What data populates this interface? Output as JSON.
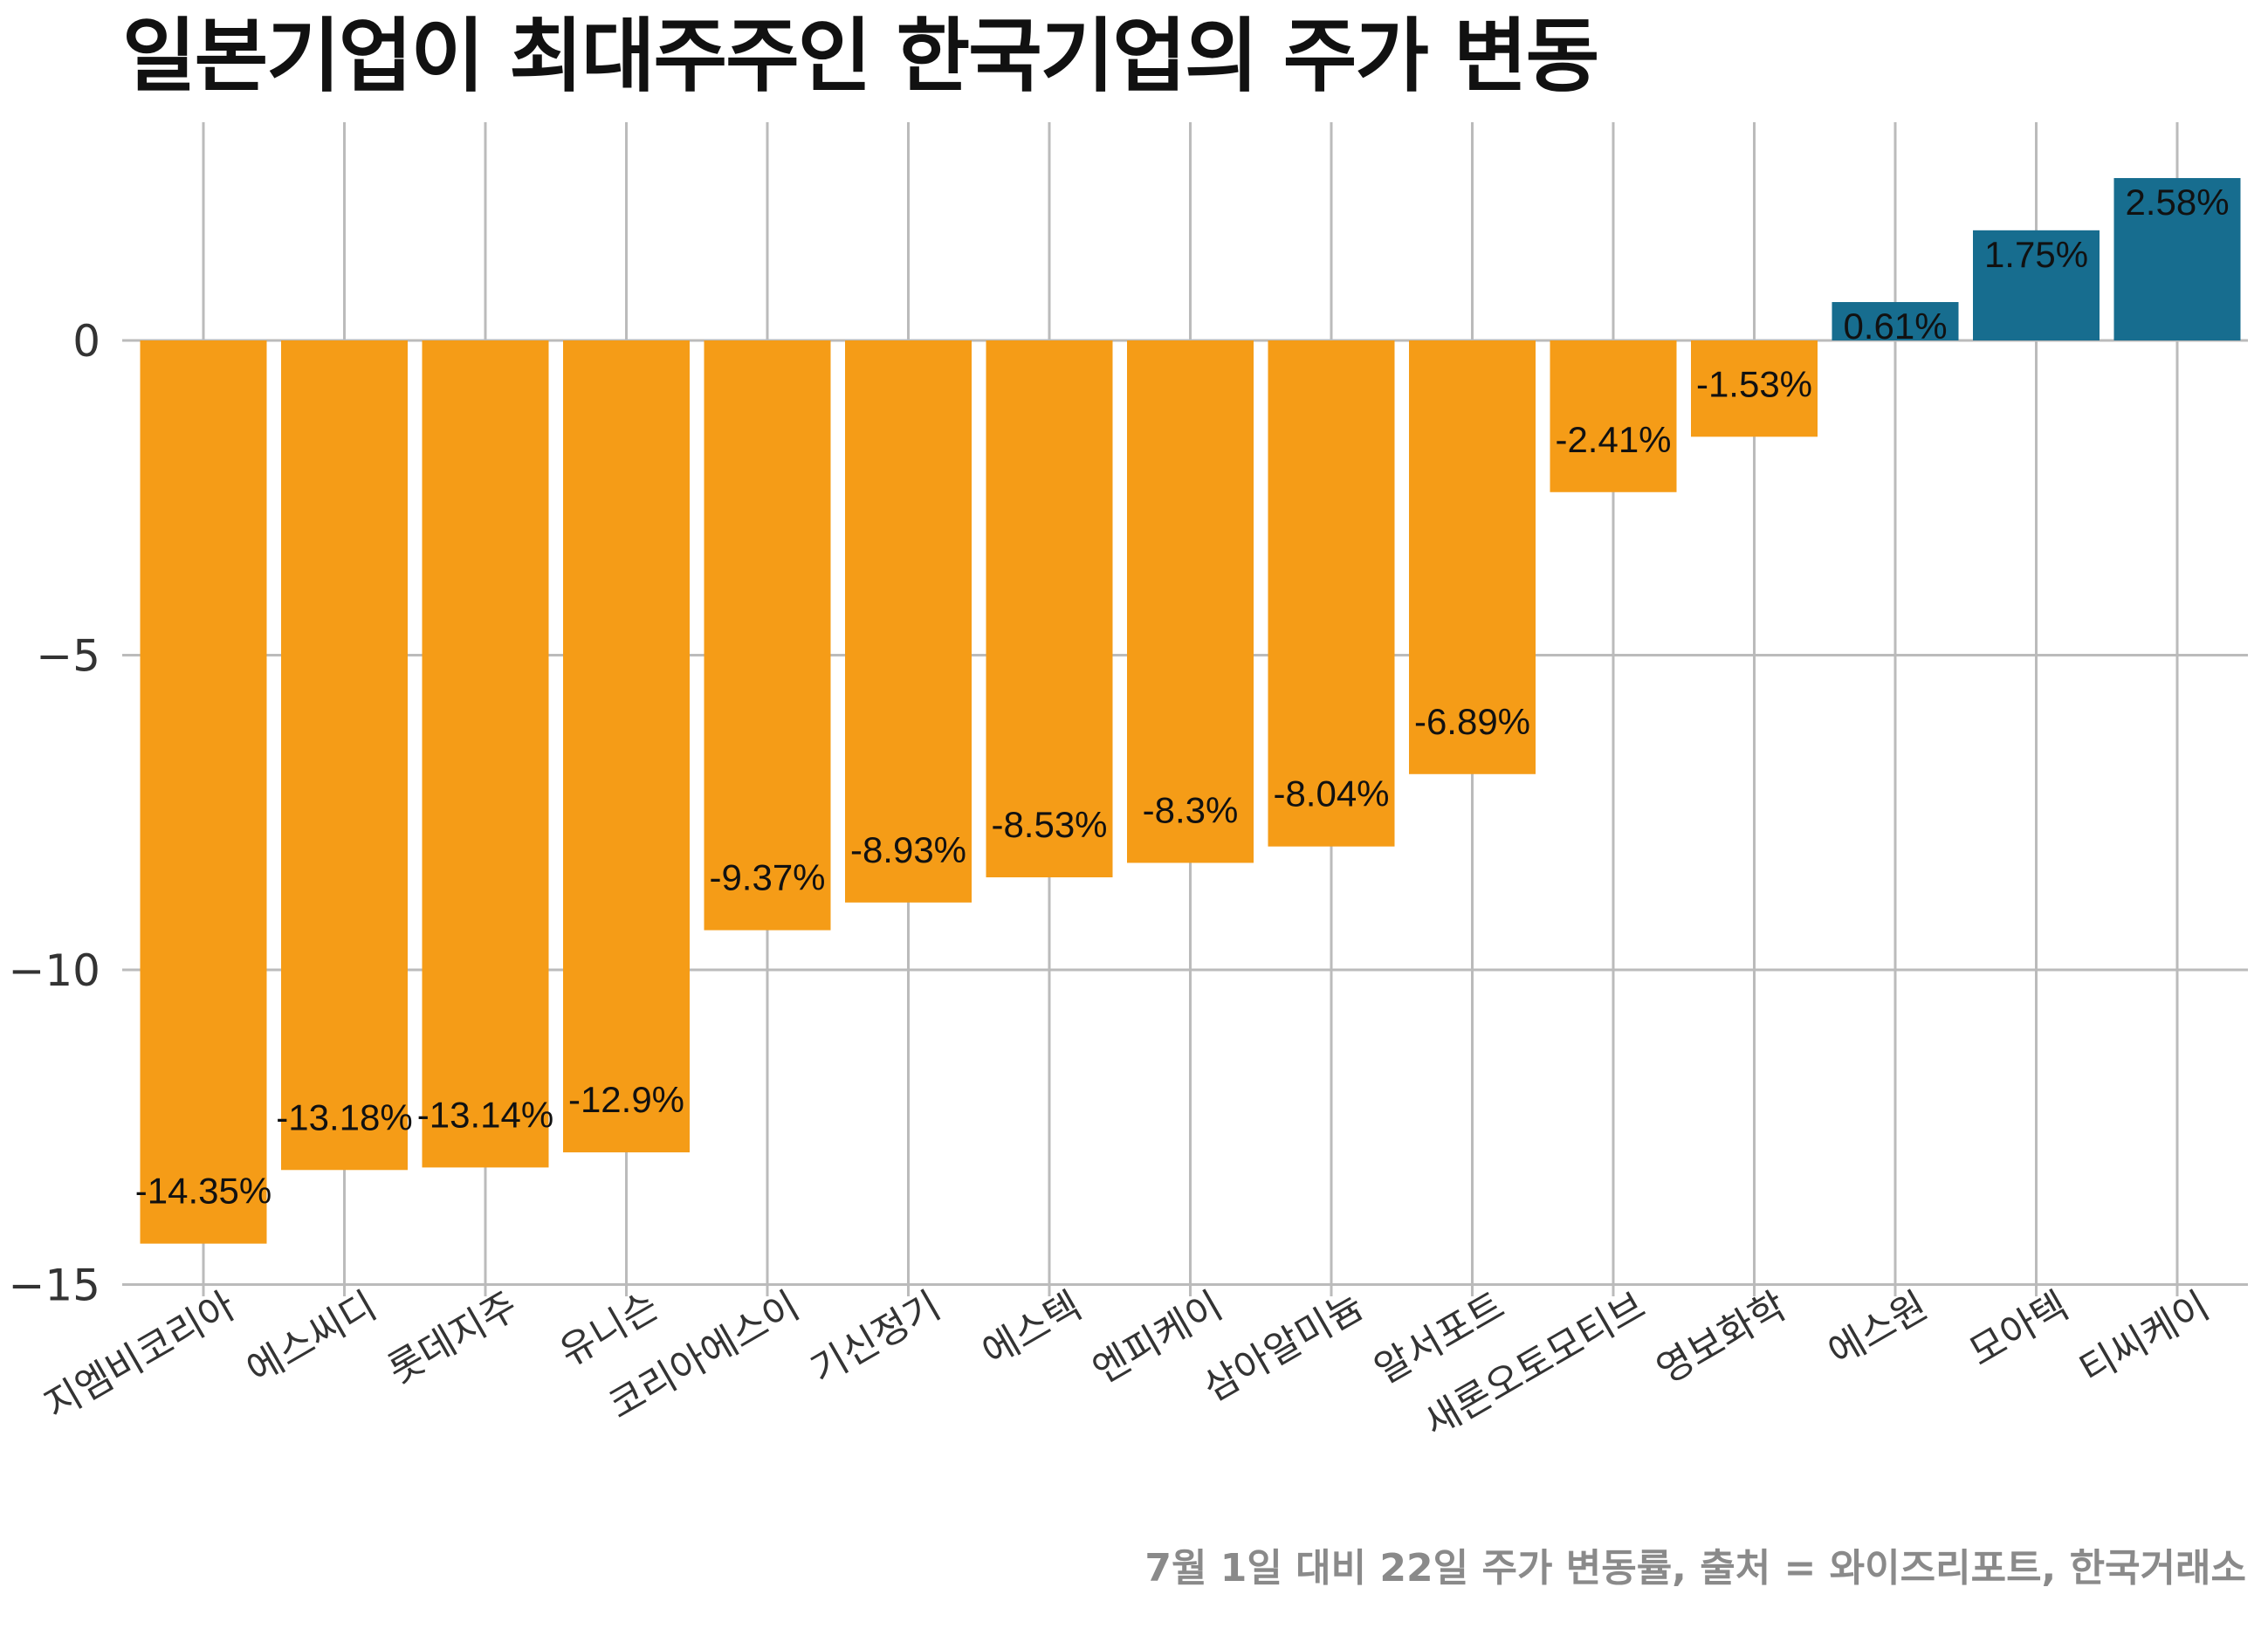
{
  "chart_data": {
    "type": "bar",
    "title": "일본기업이 최대주주인 한국기업의 주가 변동",
    "caption": "7월 1일 대비 22일 주가 변동률, 출처 = 와이즈리포트, 한국거래소",
    "xlabel": "",
    "ylabel": "",
    "ylim": [
      -15,
      3.4
    ],
    "yticks": [
      0,
      -5,
      -10,
      -15
    ],
    "ytick_labels": [
      "0",
      "−5",
      "−10",
      "−15"
    ],
    "grid": true,
    "categories": [
      "지엠비코리아",
      "에스씨디",
      "롯데지주",
      "유니슨",
      "코리아에스이",
      "기신정기",
      "에스텍",
      "엔피케이",
      "삼아알미늄",
      "알서포트",
      "새론오토모티브",
      "영보화학",
      "에스원",
      "모아텍",
      "티씨케이"
    ],
    "values": [
      -14.35,
      -13.18,
      -13.14,
      -12.9,
      -9.37,
      -8.93,
      -8.53,
      -8.3,
      -8.04,
      -6.89,
      -2.41,
      -1.53,
      0.61,
      1.75,
      2.58
    ],
    "value_labels": [
      "-14.35%",
      "-13.18%",
      "-13.14%",
      "-12.9%",
      "-9.37%",
      "-8.93%",
      "-8.53%",
      "-8.3%",
      "-8.04%",
      "-6.89%",
      "-2.41%",
      "-1.53%",
      "0.61%",
      "1.75%",
      "2.58%"
    ],
    "colors": {
      "negative": "#F59C17",
      "positive": "#176D8F",
      "grid": "#BBBBBB"
    }
  }
}
